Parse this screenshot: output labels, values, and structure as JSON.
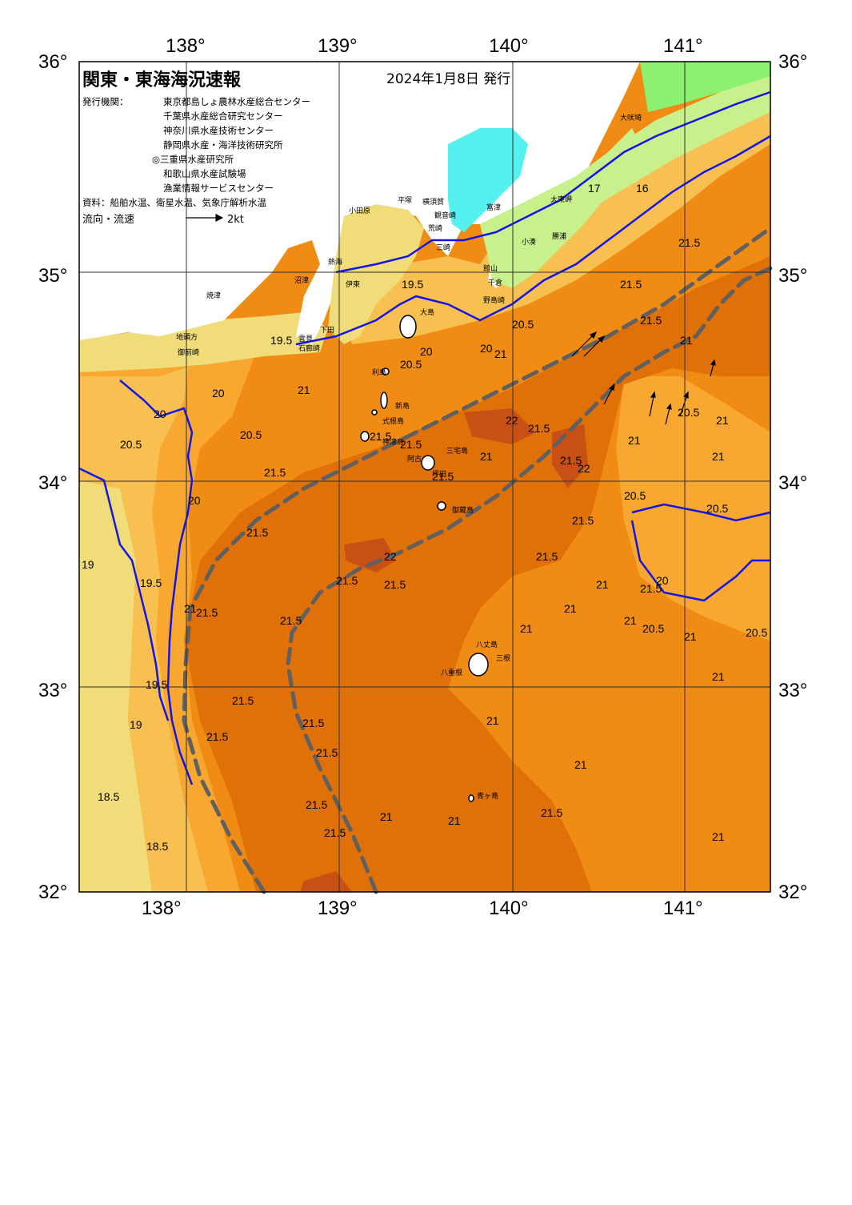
{
  "header": {
    "title": "関東・東海海況速報",
    "date": "2024年1月8日 発行",
    "issuer_label": "発行機関：",
    "issuers": [
      "東京都島しょ農林水産総合センター",
      "千葉県水産総合研究センター",
      "神奈川県水産技術センター",
      "静岡県水産・海洋技術研究所",
      "◎三重県水産研究所",
      "和歌山県水産試験場",
      "漁業情報サービスセンター"
    ],
    "source": "資料：船舶水温、衛星水温、気象庁解析水温",
    "legend_label": "流向・流速",
    "legend_value": "2kt"
  },
  "axes": {
    "lon_ticks": [
      "138°",
      "139°",
      "140°",
      "141°"
    ],
    "lat_ticks": [
      "36°",
      "35°",
      "34°",
      "33°",
      "32°"
    ]
  },
  "map": {
    "colors": {
      "land": "#ffffff",
      "lake": "#55f0f0",
      "t_16": "#8cf070",
      "t_17": "#c8f08c",
      "t_18": "#f0dc78",
      "t_19": "#f8c050",
      "t_20": "#f8a830",
      "t_21": "#f08c14",
      "t_21_5": "#e07008",
      "t_22": "#c85014",
      "kuroshio_axis": "#606060",
      "isotherm": "#1414e6"
    },
    "contour_labels": [
      "21.5",
      "21.5",
      "21",
      "21",
      "21.5",
      "21.5",
      "22",
      "22",
      "21",
      "20.5",
      "20.5",
      "20.5",
      "20.5",
      "21.5",
      "21.5",
      "21",
      "21",
      "20",
      "20",
      "19.5",
      "19.5",
      "19",
      "19",
      "18.5",
      "18.5",
      "21.5",
      "21.5",
      "21.5",
      "21.5",
      "21.5",
      "21.5",
      "21.5",
      "21",
      "21",
      "21",
      "21.5",
      "21",
      "21",
      "21",
      "20.5",
      "20.5",
      "20.5",
      "21",
      "21",
      "20",
      "20",
      "19.5",
      "19.5",
      "20",
      "21.5",
      "21.5",
      "20.5",
      "22",
      "21.5",
      "21",
      "20.5",
      "21.5",
      "21.5",
      "21.5",
      "21.5",
      "21.5",
      "21",
      "21",
      "21",
      "21",
      "21.5",
      "21",
      "21.5",
      "20",
      "17",
      "16"
    ],
    "places": [
      "大吠埼",
      "太東岬",
      "勝浦",
      "小湊",
      "野島崎",
      "千倉",
      "館山",
      "富津",
      "観音崎",
      "横須賀",
      "平塚",
      "小田原",
      "荒崎",
      "三崎",
      "熱海",
      "伊東",
      "下田",
      "石廊崎",
      "雲見",
      "沼津",
      "焼津",
      "地頭方",
      "御前崎",
      "大島",
      "利島",
      "新島",
      "式根島",
      "神津島",
      "三宅島",
      "阿古",
      "坪田",
      "御蔵島",
      "八丈島",
      "八重根",
      "三根",
      "青ヶ島"
    ]
  }
}
